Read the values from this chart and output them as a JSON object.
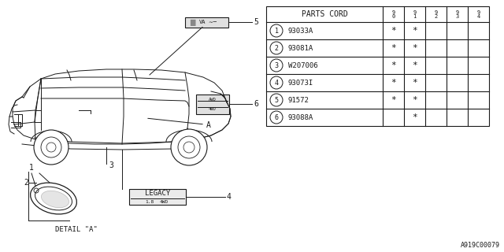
{
  "bg_color": "#ffffff",
  "diagram_color": "#1a1a1a",
  "parts_cord_header": "PARTS CORD",
  "col_headers": [
    "9\n0",
    "9\n1",
    "9\n2",
    "9\n3",
    "9\n4"
  ],
  "rows": [
    {
      "num": 1,
      "part": "93033A",
      "cols": [
        "*",
        "*",
        "",
        "",
        ""
      ]
    },
    {
      "num": 2,
      "part": "93081A",
      "cols": [
        "*",
        "*",
        "",
        "",
        ""
      ]
    },
    {
      "num": 3,
      "part": "W207006",
      "cols": [
        "*",
        "*",
        "",
        "",
        ""
      ]
    },
    {
      "num": 4,
      "part": "93073I",
      "cols": [
        "*",
        "*",
        "",
        "",
        ""
      ]
    },
    {
      "num": 5,
      "part": "91572",
      "cols": [
        "*",
        "*",
        "",
        "",
        ""
      ]
    },
    {
      "num": 6,
      "part": "93088A",
      "cols": [
        "",
        "*",
        "",
        "",
        ""
      ]
    }
  ],
  "footer_text": "A919C00079",
  "detail_label": "DETAIL \"A\""
}
